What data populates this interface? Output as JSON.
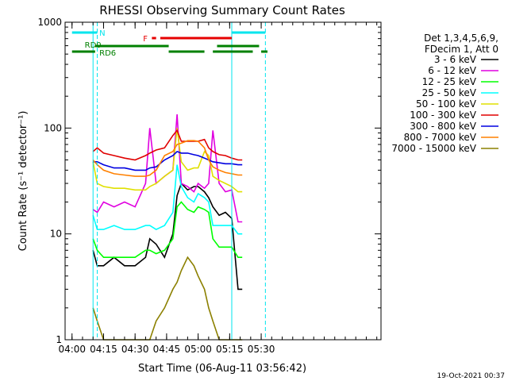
{
  "chart_data": {
    "type": "line",
    "title": "RHESSI Observing Summary Count Rates",
    "xlabel": "Start Time (06-Aug-11 03:56:42)",
    "ylabel": "Count Rate (s⁻¹ detector⁻¹)",
    "y_scale": "log",
    "ylim": [
      1,
      1000
    ],
    "xlim": [
      "03:56:42",
      "06:27"
    ],
    "x_ticks": [
      "04:00",
      "04:15",
      "04:30",
      "04:45",
      "05:00",
      "05:15",
      "05:30"
    ],
    "y_ticks": [
      "1",
      "10",
      "100",
      "1000"
    ],
    "legend_header": [
      "Det 1,3,4,5,6,9,",
      "FDecim 1, Att 0"
    ],
    "legend_placement": "right",
    "timestamp": "19-Oct-2021 00:37",
    "state_bars": [
      {
        "label": "N",
        "color": "#00e5ee",
        "segments": [
          [
            "04:00",
            "04:12"
          ],
          [
            "05:16",
            "05:32"
          ]
        ]
      },
      {
        "label": "F",
        "color": "#e60000",
        "segments": [
          [
            "04:38",
            "04:40"
          ],
          [
            "04:42",
            "05:16"
          ]
        ]
      },
      {
        "label": "RD0",
        "color": "#008000",
        "segments": [
          [
            "04:11",
            "04:46"
          ],
          [
            "05:09",
            "05:29"
          ]
        ]
      },
      {
        "label": "RD6",
        "color": "#008000",
        "segments": [
          [
            "04:00",
            "04:11"
          ],
          [
            "04:46",
            "05:03"
          ],
          [
            "05:07",
            "05:26"
          ],
          [
            "05:30",
            "05:33"
          ]
        ]
      }
    ],
    "markers": [
      {
        "time": "04:10",
        "style": "solid",
        "color": "#00e5ee"
      },
      {
        "time": "04:12",
        "style": "dashed",
        "color": "#00e5ee"
      },
      {
        "time": "05:16",
        "style": "solid",
        "color": "#00e5ee"
      },
      {
        "time": "05:32",
        "style": "dashed",
        "color": "#00e5ee"
      }
    ],
    "x": [
      "04:10",
      "04:12",
      "04:15",
      "04:20",
      "04:25",
      "04:30",
      "04:35",
      "04:37",
      "04:40",
      "04:44",
      "04:48",
      "04:50",
      "04:52",
      "04:55",
      "04:58",
      "05:00",
      "05:03",
      "05:05",
      "05:07",
      "05:10",
      "05:13",
      "05:16",
      "05:19",
      "05:21"
    ],
    "series": [
      {
        "name": "3 - 6 keV",
        "color": "#000000",
        "values": [
          7,
          5,
          5,
          6,
          5,
          5,
          6,
          9,
          8,
          6,
          10,
          23,
          30,
          26,
          28,
          28,
          25,
          22,
          18,
          15,
          16,
          14,
          3,
          3
        ]
      },
      {
        "name": "6 - 12 keV",
        "color": "#e000e0",
        "values": [
          17,
          16,
          20,
          18,
          20,
          18,
          30,
          100,
          30,
          35,
          40,
          135,
          30,
          28,
          25,
          30,
          27,
          30,
          95,
          30,
          25,
          26,
          13,
          13
        ]
      },
      {
        "name": "12 - 25 keV",
        "color": "#00ff00",
        "values": [
          9,
          7,
          6,
          6,
          6,
          6,
          7,
          7,
          6.5,
          7,
          9,
          18,
          20,
          17,
          16,
          18,
          17,
          16,
          9,
          7.5,
          7.5,
          7.5,
          6,
          6
        ]
      },
      {
        "name": "25 - 50 keV",
        "color": "#00ffff",
        "values": [
          15,
          11,
          11,
          12,
          11,
          11,
          12,
          12,
          11,
          12,
          16,
          45,
          28,
          22,
          20,
          24,
          22,
          20,
          12,
          12,
          12,
          12,
          10,
          10
        ]
      },
      {
        "name": "50 - 100 keV",
        "color": "#e0e000",
        "values": [
          48,
          30,
          28,
          27,
          27,
          26,
          26,
          28,
          30,
          35,
          40,
          100,
          48,
          40,
          42,
          42,
          60,
          55,
          35,
          32,
          30,
          28,
          25,
          25
        ]
      },
      {
        "name": "100 - 300 keV",
        "color": "#e00000",
        "values": [
          60,
          65,
          58,
          55,
          52,
          50,
          55,
          58,
          62,
          65,
          85,
          95,
          75,
          75,
          75,
          75,
          78,
          65,
          60,
          56,
          55,
          52,
          50,
          50
        ]
      },
      {
        "name": "300 - 800 keV",
        "color": "#0000e0",
        "values": [
          48,
          48,
          45,
          42,
          42,
          40,
          40,
          42,
          43,
          50,
          55,
          60,
          58,
          58,
          56,
          55,
          52,
          50,
          48,
          47,
          46,
          46,
          45,
          45
        ]
      },
      {
        "name": "800 - 7000 keV",
        "color": "#ff8000",
        "values": [
          50,
          45,
          40,
          37,
          36,
          35,
          35,
          36,
          40,
          55,
          60,
          70,
          72,
          76,
          76,
          75,
          65,
          50,
          43,
          40,
          38,
          37,
          36,
          36
        ]
      },
      {
        "name": "7000 - 15000 keV",
        "color": "#8c8000",
        "values": [
          2,
          1.5,
          1,
          1,
          1,
          1,
          1,
          1,
          1.5,
          2,
          3,
          3.5,
          4.5,
          6,
          5,
          4,
          3,
          2,
          1.5,
          1,
          1,
          1,
          1,
          1
        ]
      }
    ]
  }
}
